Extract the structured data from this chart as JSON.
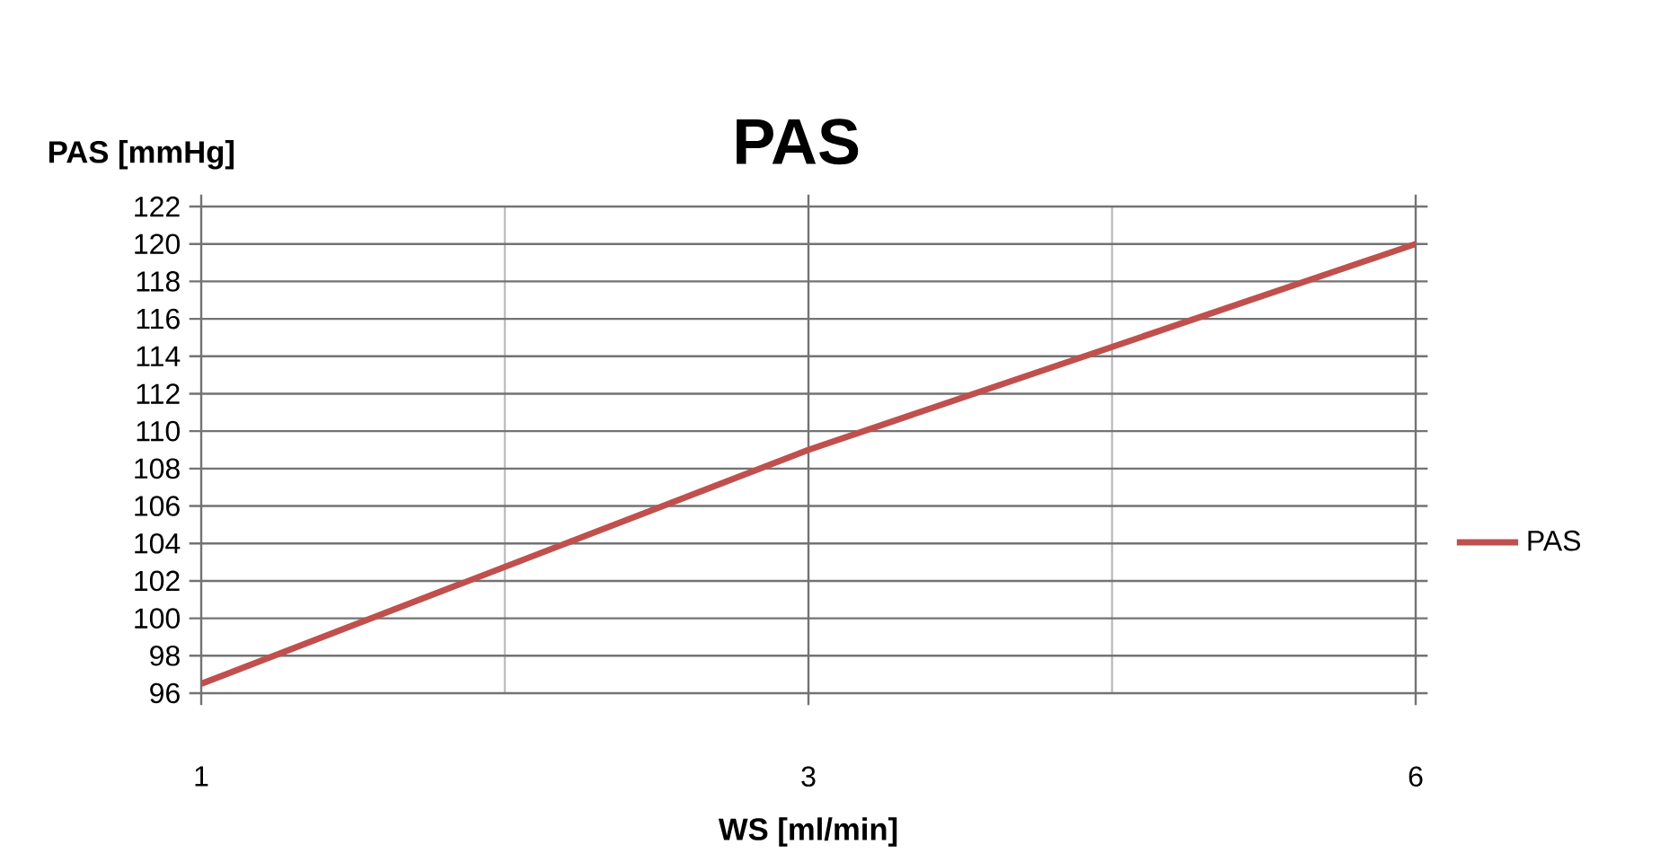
{
  "chart_data": {
    "type": "line",
    "title": "PAS",
    "xlabel": "WS [ml/min]",
    "ylabel": "PAS [mmHg]",
    "categories": [
      "1",
      "3",
      "6"
    ],
    "series": [
      {
        "name": "PAS",
        "color": "#c0504d",
        "values": [
          96.5,
          109,
          120
        ]
      }
    ],
    "ylim": [
      96,
      122
    ],
    "yticks": [
      96,
      98,
      100,
      102,
      104,
      106,
      108,
      110,
      112,
      114,
      116,
      118,
      120,
      122
    ],
    "grid": true,
    "legend": "right",
    "marker": "none",
    "line_style": "solid"
  }
}
